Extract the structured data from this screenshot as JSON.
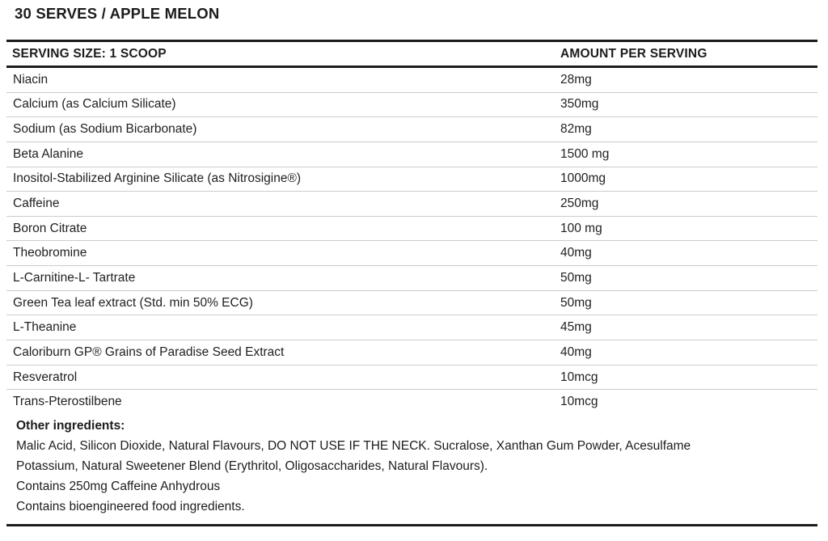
{
  "title": "30 SERVES / APPLE MELON",
  "table": {
    "header": {
      "col1": "SERVING SIZE: 1 SCOOP",
      "col2": "AMOUNT PER SERVING"
    },
    "rows": [
      {
        "name": "Niacin",
        "amount": "28mg"
      },
      {
        "name": "Calcium (as Calcium Silicate)",
        "amount": "350mg"
      },
      {
        "name": "Sodium (as Sodium Bicarbonate)",
        "amount": "82mg"
      },
      {
        "name": "Beta Alanine",
        "amount": "1500 mg"
      },
      {
        "name": "Inositol-Stabilized Arginine Silicate (as Nitrosigine®)",
        "amount": "1000mg"
      },
      {
        "name": "Caffeine",
        "amount": "250mg"
      },
      {
        "name": "Boron Citrate",
        "amount": "100 mg"
      },
      {
        "name": "Theobromine",
        "amount": "40mg"
      },
      {
        "name": "L-Carnitine-L- Tartrate",
        "amount": "50mg"
      },
      {
        "name": "Green Tea leaf extract (Std. min 50% ECG)",
        "amount": "50mg"
      },
      {
        "name": "L-Theanine",
        "amount": "45mg"
      },
      {
        "name": "Caloriburn GP® Grains of Paradise Seed Extract",
        "amount": "40mg"
      },
      {
        "name": "Resveratrol",
        "amount": "10mcg"
      },
      {
        "name": "Trans-Pterostilbene",
        "amount": "10mcg"
      }
    ]
  },
  "other_ingredients": {
    "heading": "Other ingredients:",
    "lines": [
      "Malic Acid, Silicon Dioxide, Natural Flavours, DO NOT USE IF THE NECK. Sucralose, Xanthan Gum Powder, Acesulfame",
      "Potassium, Natural Sweetener Blend (Erythritol, Oligosaccharides, Natural Flavours).",
      "Contains 250mg Caffeine Anhydrous",
      "Contains bioengineered food ingredients."
    ]
  },
  "colors": {
    "text": "#1c1c1c",
    "rule": "#1c1c1c",
    "separator": "#cccccc",
    "background": "#ffffff"
  }
}
